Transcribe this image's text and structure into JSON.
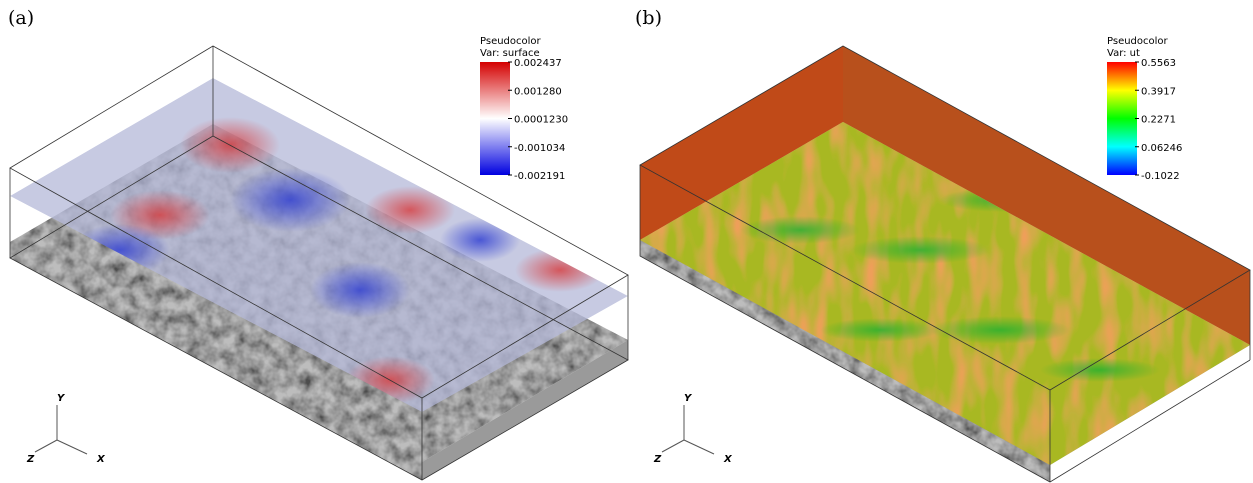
{
  "panels": [
    {
      "label": "(a)",
      "legend": {
        "title": "Pseudocolor",
        "var": "Var: surface",
        "ticks": [
          "0.002437",
          "0.001280",
          "0.0001230",
          "-0.001034",
          "-0.002191"
        ]
      },
      "axes": {
        "y": "Y",
        "z": "Z",
        "x": "X"
      }
    },
    {
      "label": "(b)",
      "legend": {
        "title": "Pseudocolor",
        "var": "Var: ut",
        "ticks": [
          "0.5563",
          "0.3917",
          "0.2271",
          "0.06246",
          "-0.1022"
        ]
      },
      "axes": {
        "y": "Y",
        "z": "Z",
        "x": "X"
      }
    }
  ]
}
